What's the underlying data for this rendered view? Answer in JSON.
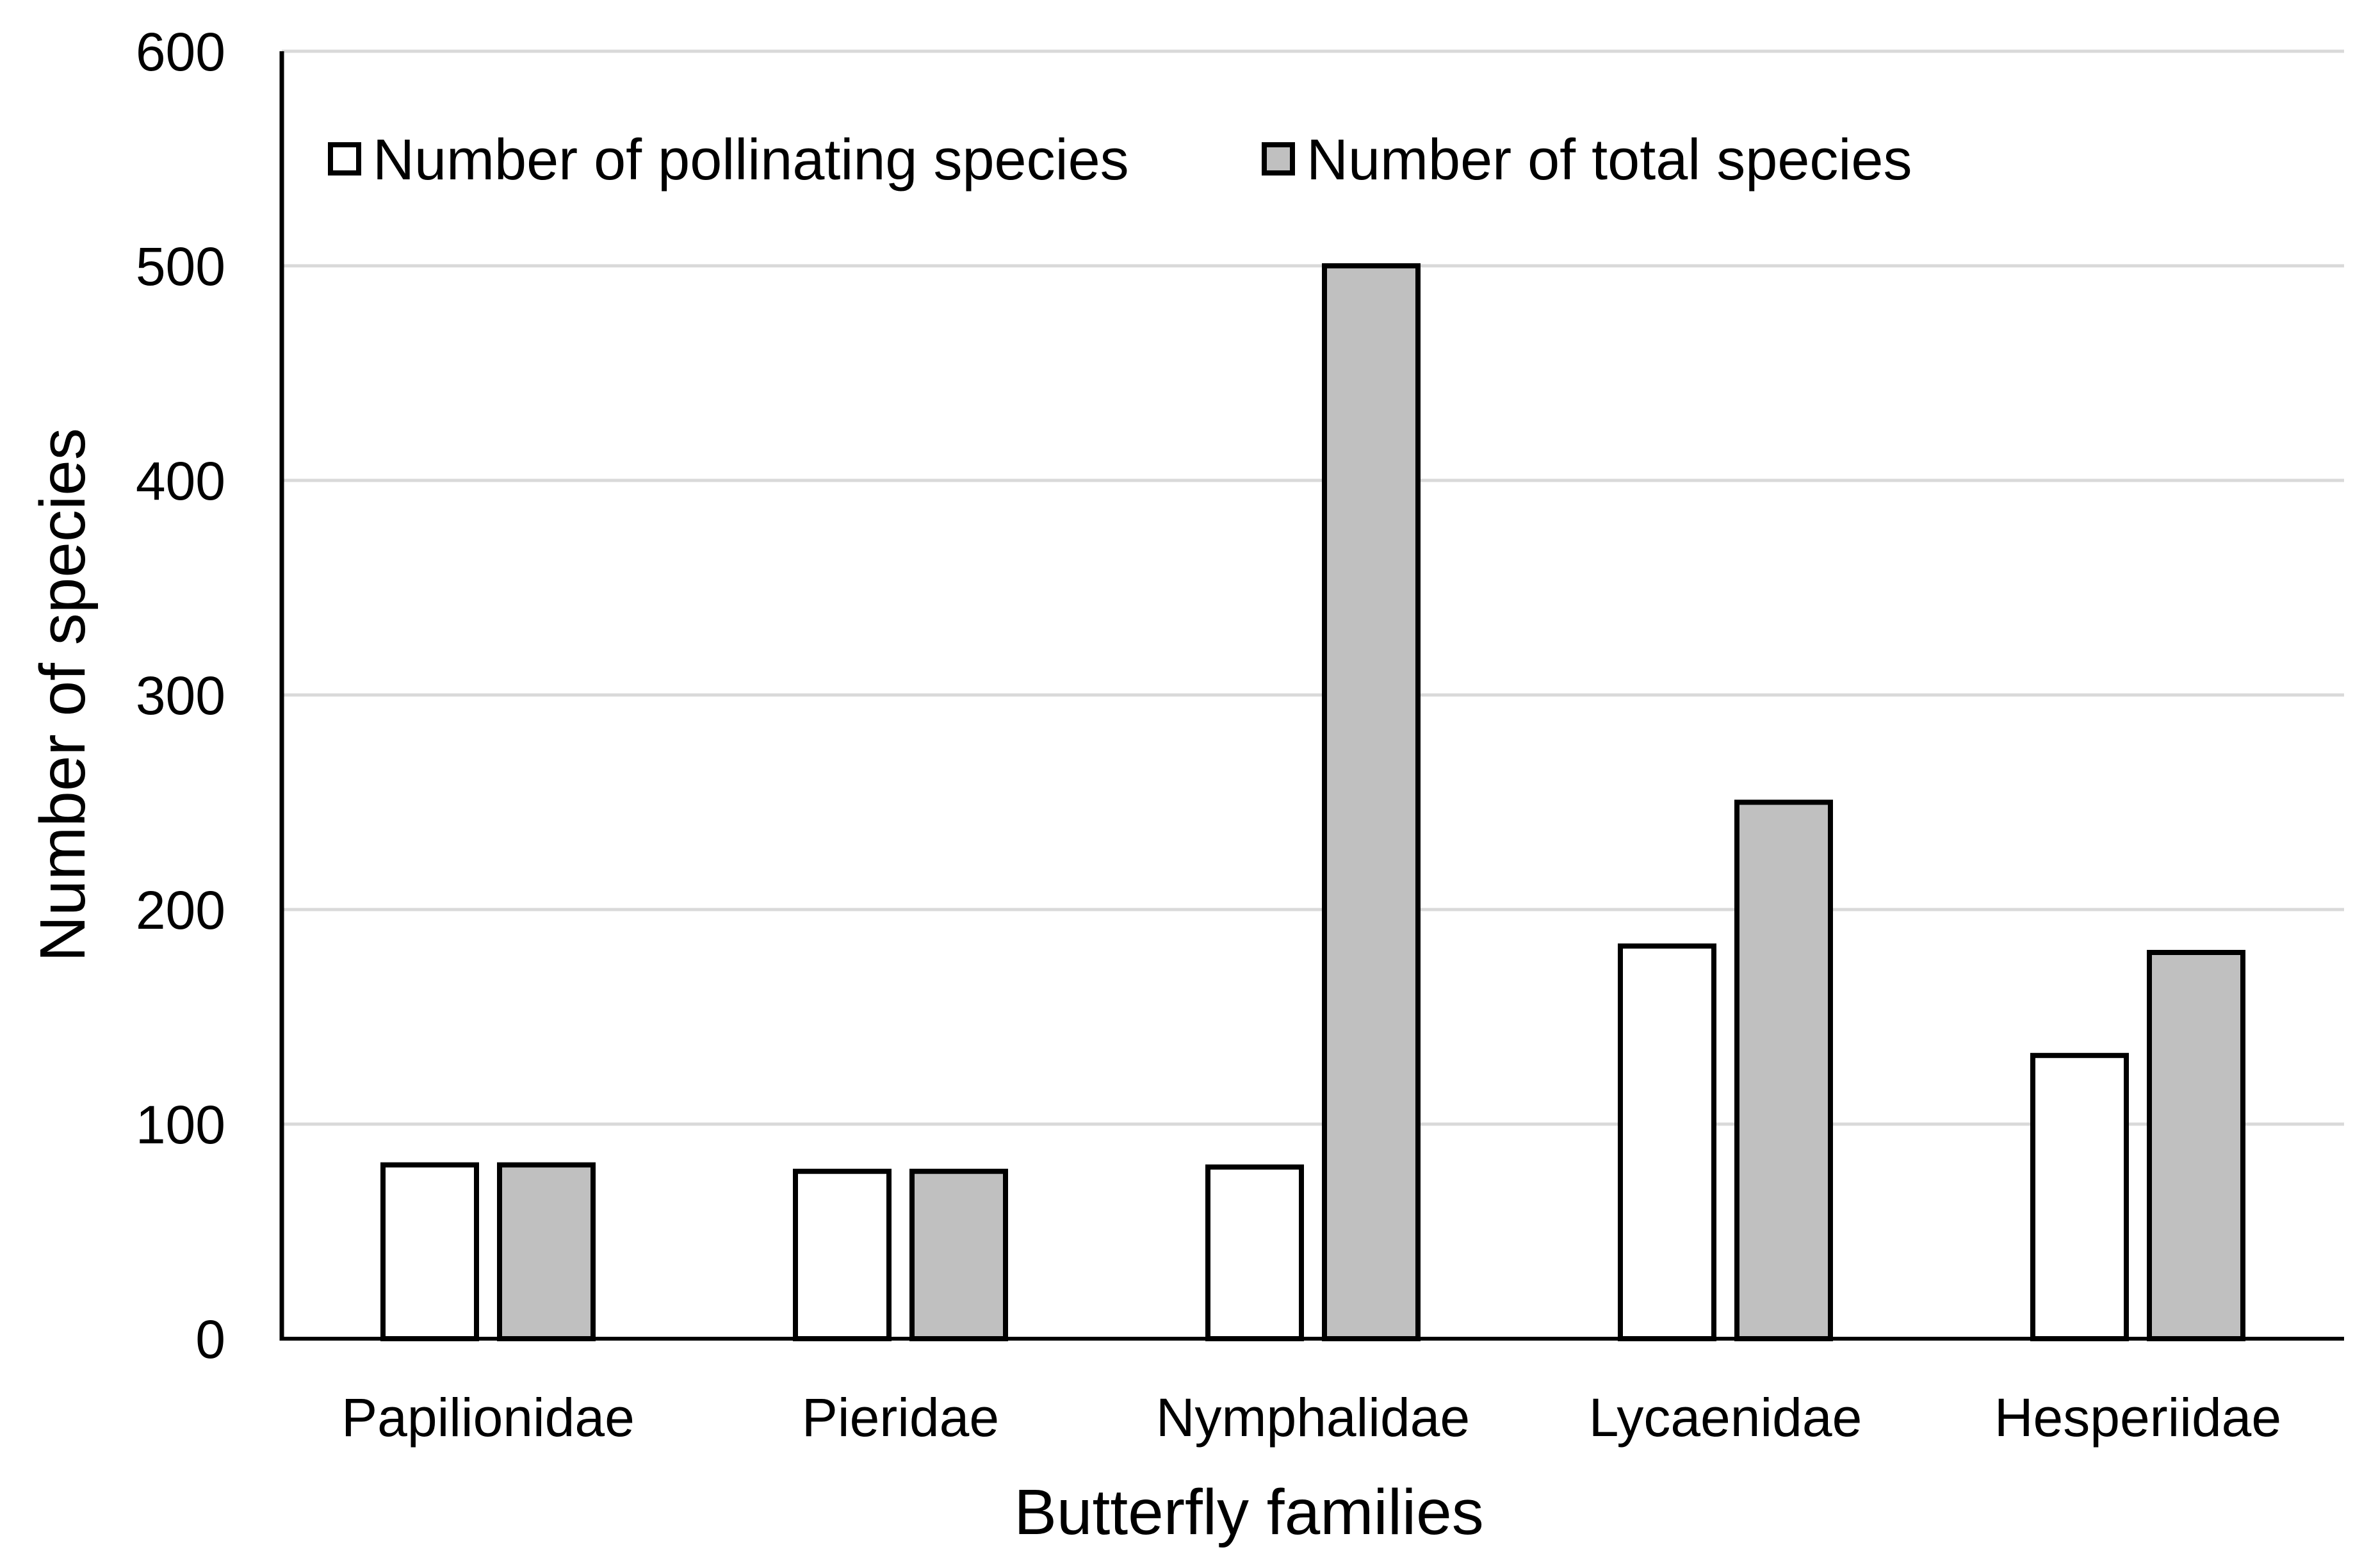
{
  "chart_data": {
    "type": "bar",
    "title": "",
    "xlabel": "Butterfly families",
    "ylabel": "Number of species",
    "ylim": [
      0,
      600
    ],
    "yticks": [
      0,
      100,
      200,
      300,
      400,
      500,
      600
    ],
    "grid": true,
    "legend_position": "top-left",
    "categories": [
      "Papilionidae",
      "Pieridae",
      "Nymphalidae",
      "Lycaenidae",
      "Hesperiidae"
    ],
    "series": [
      {
        "name": "Number of pollinating species",
        "color": "#ffffff",
        "values": [
          81,
          78,
          80,
          183,
          132
        ]
      },
      {
        "name": "Number of total species",
        "color": "#c0c0c0",
        "values": [
          81,
          78,
          500,
          250,
          180
        ]
      }
    ],
    "colors": {
      "bar_stroke": "#000000",
      "grid": "#d9d9d9",
      "axis": "#000000"
    }
  }
}
